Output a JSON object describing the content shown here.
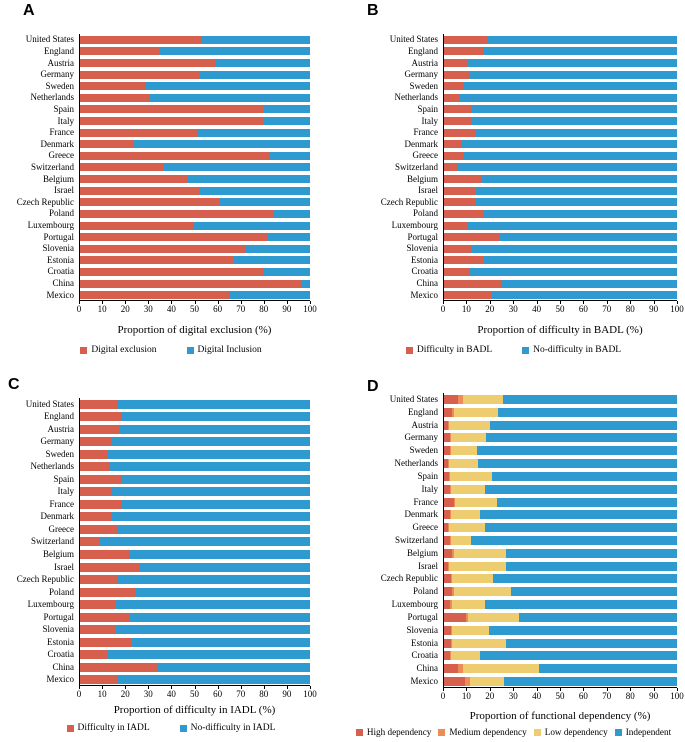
{
  "figure": {
    "background": "#ffffff",
    "panel_letters": [
      "A",
      "B",
      "C",
      "D"
    ]
  },
  "colors": {
    "red": "#d6604d",
    "blue": "#2e9ad0",
    "orange": "#ee8c56",
    "yellow": "#edcd70",
    "axis": "#000000"
  },
  "countries": [
    "United States",
    "England",
    "Austria",
    "Germany",
    "Sweden",
    "Netherlands",
    "Spain",
    "Italy",
    "France",
    "Denmark",
    "Greece",
    "Switzerland",
    "Belgium",
    "Israel",
    "Czech Republic",
    "Poland",
    "Luxembourg",
    "Portugal",
    "Slovenia",
    "Estonia",
    "Croatia",
    "China",
    "Mexico"
  ],
  "chart_data": [
    {
      "type": "bar",
      "stacked": true,
      "orientation": "horizontal",
      "panel_label": "A",
      "title": "",
      "xlabel": "Proportion of digital exclusion (%)",
      "ylabel": "",
      "xlim": [
        0,
        100
      ],
      "xticks": [
        0,
        10,
        20,
        30,
        40,
        50,
        60,
        70,
        80,
        90,
        100
      ],
      "grid": false,
      "legend_position": "bottom",
      "categories": [
        "United States",
        "England",
        "Austria",
        "Germany",
        "Sweden",
        "Netherlands",
        "Spain",
        "Italy",
        "France",
        "Denmark",
        "Greece",
        "Switzerland",
        "Belgium",
        "Israel",
        "Czech Republic",
        "Poland",
        "Luxembourg",
        "Portugal",
        "Slovenia",
        "Estonia",
        "Croatia",
        "China",
        "Mexico"
      ],
      "series": [
        {
          "name": "Digital exclusion",
          "color": "#d6604d",
          "values": [
            53,
            35,
            59,
            52,
            28.5,
            30.5,
            80,
            79.5,
            51,
            24,
            82.5,
            37,
            47,
            52.5,
            60.5,
            84.5,
            49.5,
            82,
            72,
            67,
            80,
            96.5,
            65
          ]
        },
        {
          "name": "Digital Inclusion",
          "color": "#2e9ad0",
          "values": [
            47,
            65,
            41,
            48,
            71.5,
            69.5,
            20,
            20.5,
            49,
            76,
            17.5,
            63,
            53,
            47.5,
            39.5,
            15.5,
            50.5,
            18,
            28,
            33,
            20,
            3.5,
            35
          ]
        }
      ]
    },
    {
      "type": "bar",
      "stacked": true,
      "orientation": "horizontal",
      "panel_label": "B",
      "title": "",
      "xlabel": "Proportion of difficulty in BADL (%)",
      "ylabel": "",
      "xlim": [
        0,
        100
      ],
      "xticks": [
        0,
        10,
        20,
        30,
        40,
        50,
        60,
        70,
        80,
        90,
        100
      ],
      "grid": false,
      "legend_position": "bottom",
      "categories": [
        "United States",
        "England",
        "Austria",
        "Germany",
        "Sweden",
        "Netherlands",
        "Spain",
        "Italy",
        "France",
        "Denmark",
        "Greece",
        "Switzerland",
        "Belgium",
        "Israel",
        "Czech Republic",
        "Poland",
        "Luxembourg",
        "Portugal",
        "Slovenia",
        "Estonia",
        "Croatia",
        "China",
        "Mexico"
      ],
      "series": [
        {
          "name": "Difficulty in BADL",
          "color": "#d6604d",
          "values": [
            19,
            17,
            10.5,
            11.5,
            8.5,
            7,
            12.5,
            12,
            14,
            8,
            8.5,
            6.5,
            16.5,
            13.5,
            14,
            17,
            10.5,
            24.5,
            12,
            17.5,
            11,
            25,
            21
          ]
        },
        {
          "name": "No-difficulty in BADL",
          "color": "#2e9ad0",
          "values": [
            81,
            83,
            89.5,
            88.5,
            91.5,
            93,
            87.5,
            88,
            86,
            92,
            91.5,
            93.5,
            83.5,
            86.5,
            86,
            83,
            89.5,
            75.5,
            88,
            82.5,
            89,
            75,
            79
          ]
        }
      ]
    },
    {
      "type": "bar",
      "stacked": true,
      "orientation": "horizontal",
      "panel_label": "C",
      "title": "",
      "xlabel": "Proportion of difficulty in IADL (%)",
      "ylabel": "",
      "xlim": [
        0,
        100
      ],
      "xticks": [
        0,
        10,
        20,
        30,
        40,
        50,
        60,
        70,
        80,
        90,
        100
      ],
      "grid": false,
      "legend_position": "bottom",
      "categories": [
        "United States",
        "England",
        "Austria",
        "Germany",
        "Sweden",
        "Netherlands",
        "Spain",
        "Italy",
        "France",
        "Denmark",
        "Greece",
        "Switzerland",
        "Belgium",
        "Israel",
        "Czech Republic",
        "Poland",
        "Luxembourg",
        "Portugal",
        "Slovenia",
        "Estonia",
        "Croatia",
        "China",
        "Mexico"
      ],
      "series": [
        {
          "name": "Difficulty in IADL",
          "color": "#d6604d",
          "values": [
            16.5,
            18,
            17.5,
            14.5,
            12,
            13,
            18,
            14,
            18.5,
            14.5,
            16.5,
            9,
            21.5,
            26,
            17,
            24.5,
            16,
            22,
            16,
            22.5,
            12.5,
            34,
            16.5
          ]
        },
        {
          "name": "No-difficulty in IADL",
          "color": "#2e9ad0",
          "values": [
            83.5,
            82,
            82.5,
            85.5,
            88,
            87,
            82,
            86,
            81.5,
            85.5,
            83.5,
            91,
            78.5,
            74,
            83,
            75.5,
            84,
            78,
            84,
            77.5,
            87.5,
            66,
            83.5
          ]
        }
      ]
    },
    {
      "type": "bar",
      "stacked": true,
      "orientation": "horizontal",
      "panel_label": "D",
      "title": "",
      "xlabel": "Proportion of functional dependency (%)",
      "ylabel": "",
      "xlim": [
        0,
        100
      ],
      "xticks": [
        0,
        10,
        20,
        30,
        40,
        50,
        60,
        70,
        80,
        90,
        100
      ],
      "grid": false,
      "legend_position": "bottom",
      "categories": [
        "United States",
        "England",
        "Austria",
        "Germany",
        "Sweden",
        "Netherlands",
        "Spain",
        "Italy",
        "France",
        "Denmark",
        "Greece",
        "Switzerland",
        "Belgium",
        "Israel",
        "Czech Republic",
        "Poland",
        "Luxembourg",
        "Portugal",
        "Slovenia",
        "Estonia",
        "Croatia",
        "China",
        "Mexico"
      ],
      "series": [
        {
          "name": "High dependency",
          "color": "#d6604d",
          "values": [
            6.5,
            4,
            2,
            3,
            3,
            2,
            2.5,
            3,
            4.5,
            3,
            2,
            3,
            4,
            2,
            3.5,
            4,
            3,
            10,
            3.5,
            3.5,
            3,
            6.5,
            9.5
          ]
        },
        {
          "name": "Medium dependency",
          "color": "#ee8c56",
          "values": [
            2,
            0.5,
            0.5,
            0.5,
            0.5,
            0.5,
            0.5,
            0.5,
            0.5,
            0.5,
            0.5,
            0.5,
            0.5,
            0.5,
            0.5,
            0.5,
            1,
            0.5,
            0.5,
            0.5,
            0.5,
            2,
            2
          ]
        },
        {
          "name": "Low dependency",
          "color": "#edcd70",
          "values": [
            17,
            19,
            17.5,
            15,
            11,
            12.5,
            18,
            14.5,
            18,
            12.5,
            15.5,
            8.5,
            22.5,
            24.5,
            17.5,
            24.5,
            14,
            22,
            15.5,
            23,
            12.5,
            32.5,
            14.5
          ]
        },
        {
          "name": "Independent",
          "color": "#2e9ad0",
          "values": [
            74.5,
            76.5,
            80,
            81.5,
            85.5,
            85,
            79,
            82,
            77,
            84,
            82,
            88,
            73,
            73,
            78.5,
            71,
            82,
            67.5,
            80.5,
            73,
            84,
            59,
            74
          ]
        }
      ]
    }
  ]
}
